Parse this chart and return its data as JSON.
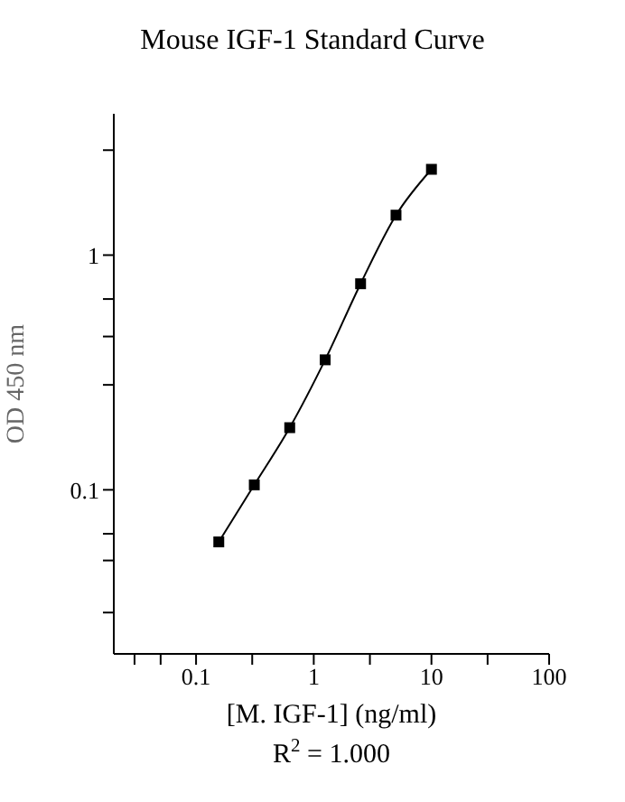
{
  "chart_data": {
    "type": "line",
    "title": "Mouse IGF-1 Standard Curve",
    "xlabel": "[M. IGF-1] (ng/ml)",
    "ylabel": "OD 450 nm",
    "annotations": [
      "R$^{2}$ = 1.000"
    ],
    "x": [
      0.156,
      0.3125,
      0.625,
      1.25,
      2.5,
      5,
      10
    ],
    "series": [
      {
        "color": "#000000",
        "values": [
          0.06,
          0.105,
          0.184,
          0.358,
          0.755,
          1.48,
          2.32
        ]
      }
    ],
    "log": "xy",
    "marker": "square",
    "line_style": "solid",
    "grid": false,
    "legend": false,
    "xlim": [
      0.02,
      100
    ],
    "xticks": [
      {
        "value": 0.03,
        "label": null
      },
      {
        "value": 0.05,
        "label": null
      },
      0.1,
      {
        "value": 0.3,
        "label": null
      },
      1,
      {
        "value": 3,
        "label": null
      },
      10,
      {
        "value": 30,
        "label": null
      },
      100
    ],
    "ylim": [
      0.02,
      4
    ],
    "yticks": [
      {
        "value": 0.03,
        "label": null
      },
      {
        "value": 0.05,
        "label": null
      },
      {
        "value": 0.065,
        "label": null
      },
      0.1,
      {
        "value": 0.28,
        "label": null
      },
      {
        "value": 0.45,
        "label": null
      },
      {
        "value": 0.65,
        "label": null
      },
      1,
      {
        "value": 2.8,
        "label": null
      }
    ]
  }
}
